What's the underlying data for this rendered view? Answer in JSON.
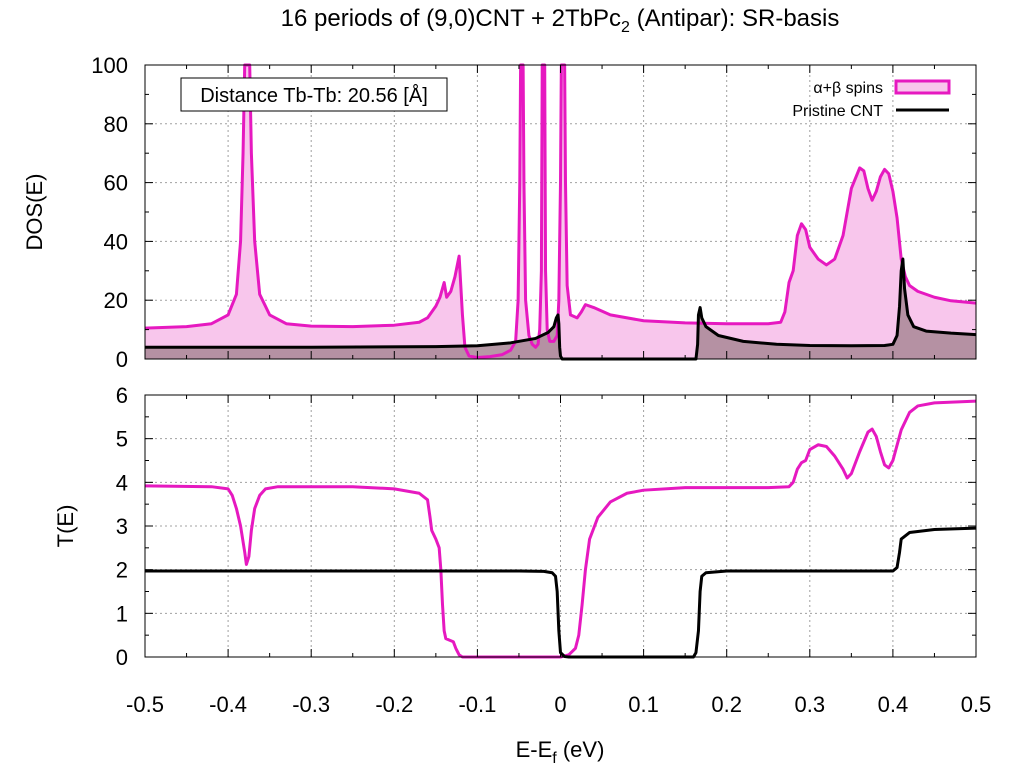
{
  "title": {
    "pre": "16 periods of (9,0)CNT + 2TbPc",
    "sub": "2",
    "post": " (Antipar): SR-basis"
  },
  "annotation": "Distance Tb-Tb: 20.56 [Å]",
  "xlabel": {
    "pre": "E-E",
    "sub": "f",
    "post": " (eV)"
  },
  "legend": [
    {
      "label": "α+β spins",
      "color": "#e619c0",
      "fill": "#f8c6ec"
    },
    {
      "label": "Pristine CNT",
      "color": "#000000",
      "fill": "#a98797"
    }
  ],
  "chart_data": [
    {
      "type": "area",
      "panel": "top",
      "ylabel": "DOS(E)",
      "xlim": [
        -0.5,
        0.5
      ],
      "ylim": [
        0,
        100
      ],
      "x_ticks": [
        -0.5,
        -0.4,
        -0.3,
        -0.2,
        -0.1,
        0,
        0.1,
        0.2,
        0.3,
        0.4,
        0.5
      ],
      "y_ticks": [
        0,
        20,
        40,
        60,
        80,
        100
      ],
      "y_tick_labels": [
        "0",
        "20",
        "40",
        "60",
        "80",
        "100"
      ],
      "grid": true,
      "legend_position": "top-right",
      "series": [
        {
          "name": "α+β spins",
          "color": "#e619c0",
          "fill": "#f8c6ec",
          "points": [
            [
              -0.5,
              10.5
            ],
            [
              -0.45,
              11
            ],
            [
              -0.42,
              12
            ],
            [
              -0.4,
              15
            ],
            [
              -0.39,
              22
            ],
            [
              -0.385,
              40
            ],
            [
              -0.382,
              70
            ],
            [
              -0.38,
              100
            ],
            [
              -0.374,
              100
            ],
            [
              -0.372,
              70
            ],
            [
              -0.368,
              40
            ],
            [
              -0.362,
              22
            ],
            [
              -0.35,
              15
            ],
            [
              -0.33,
              12
            ],
            [
              -0.3,
              11.2
            ],
            [
              -0.25,
              11
            ],
            [
              -0.2,
              11.5
            ],
            [
              -0.17,
              12.5
            ],
            [
              -0.16,
              14
            ],
            [
              -0.15,
              18
            ],
            [
              -0.145,
              21
            ],
            [
              -0.14,
              26
            ],
            [
              -0.137,
              21
            ],
            [
              -0.132,
              23
            ],
            [
              -0.127,
              28
            ],
            [
              -0.122,
              35
            ],
            [
              -0.12,
              25
            ],
            [
              -0.118,
              15
            ],
            [
              -0.115,
              4
            ],
            [
              -0.11,
              1
            ],
            [
              -0.1,
              0.5
            ],
            [
              -0.085,
              0.8
            ],
            [
              -0.07,
              1.5
            ],
            [
              -0.06,
              3
            ],
            [
              -0.054,
              6
            ],
            [
              -0.051,
              20
            ],
            [
              -0.049,
              60
            ],
            [
              -0.048,
              100
            ],
            [
              -0.045,
              100
            ],
            [
              -0.044,
              60
            ],
            [
              -0.042,
              20
            ],
            [
              -0.038,
              8
            ],
            [
              -0.034,
              5
            ],
            [
              -0.03,
              4
            ],
            [
              -0.027,
              5
            ],
            [
              -0.025,
              10
            ],
            [
              -0.023,
              30
            ],
            [
              -0.022,
              100
            ],
            [
              -0.019,
              100
            ],
            [
              -0.018,
              30
            ],
            [
              -0.016,
              10
            ],
            [
              -0.013,
              6
            ],
            [
              -0.008,
              6
            ],
            [
              -0.004,
              8
            ],
            [
              -0.002,
              20
            ],
            [
              0.0,
              60
            ],
            [
              0.001,
              100
            ],
            [
              0.005,
              100
            ],
            [
              0.006,
              60
            ],
            [
              0.008,
              25
            ],
            [
              0.012,
              15
            ],
            [
              0.02,
              14
            ],
            [
              0.025,
              16
            ],
            [
              0.03,
              18.5
            ],
            [
              0.04,
              17.5
            ],
            [
              0.06,
              15
            ],
            [
              0.1,
              13
            ],
            [
              0.15,
              12.3
            ],
            [
              0.2,
              12
            ],
            [
              0.25,
              12
            ],
            [
              0.265,
              12.5
            ],
            [
              0.27,
              16
            ],
            [
              0.275,
              26
            ],
            [
              0.28,
              30
            ],
            [
              0.285,
              42
            ],
            [
              0.29,
              46
            ],
            [
              0.295,
              44
            ],
            [
              0.3,
              38
            ],
            [
              0.31,
              34
            ],
            [
              0.32,
              32
            ],
            [
              0.33,
              34
            ],
            [
              0.34,
              42
            ],
            [
              0.35,
              58
            ],
            [
              0.36,
              65
            ],
            [
              0.365,
              64
            ],
            [
              0.37,
              58
            ],
            [
              0.375,
              54
            ],
            [
              0.38,
              57
            ],
            [
              0.385,
              62
            ],
            [
              0.39,
              64.5
            ],
            [
              0.395,
              63
            ],
            [
              0.4,
              57
            ],
            [
              0.405,
              48
            ],
            [
              0.41,
              34
            ],
            [
              0.415,
              28
            ],
            [
              0.42,
              25
            ],
            [
              0.43,
              23
            ],
            [
              0.45,
              21
            ],
            [
              0.47,
              19.8
            ],
            [
              0.5,
              19
            ]
          ]
        },
        {
          "name": "Pristine CNT",
          "color": "#000000",
          "fill": "#a98797",
          "points": [
            [
              -0.5,
              4
            ],
            [
              -0.3,
              4
            ],
            [
              -0.15,
              4.2
            ],
            [
              -0.1,
              4.5
            ],
            [
              -0.06,
              5.5
            ],
            [
              -0.03,
              7
            ],
            [
              -0.015,
              9
            ],
            [
              -0.008,
              11
            ],
            [
              -0.005,
              14
            ],
            [
              -0.003,
              15
            ],
            [
              -0.002,
              12
            ],
            [
              -0.001,
              4
            ],
            [
              0.0,
              1
            ],
            [
              0.002,
              0
            ],
            [
              0.163,
              0
            ],
            [
              0.165,
              5
            ],
            [
              0.166,
              15
            ],
            [
              0.168,
              17.5
            ],
            [
              0.17,
              14
            ],
            [
              0.175,
              11
            ],
            [
              0.19,
              8
            ],
            [
              0.22,
              6
            ],
            [
              0.26,
              5
            ],
            [
              0.3,
              4.6
            ],
            [
              0.35,
              4.5
            ],
            [
              0.39,
              4.6
            ],
            [
              0.4,
              5
            ],
            [
              0.405,
              8
            ],
            [
              0.408,
              18
            ],
            [
              0.41,
              30
            ],
            [
              0.412,
              34
            ],
            [
              0.414,
              24
            ],
            [
              0.418,
              15
            ],
            [
              0.425,
              11
            ],
            [
              0.44,
              9.5
            ],
            [
              0.47,
              8.8
            ],
            [
              0.5,
              8.3
            ]
          ]
        }
      ]
    },
    {
      "type": "line",
      "panel": "bottom",
      "ylabel": "T(E)",
      "xlim": [
        -0.5,
        0.5
      ],
      "ylim": [
        0,
        6
      ],
      "x_ticks": [
        -0.5,
        -0.4,
        -0.3,
        -0.2,
        -0.1,
        0,
        0.1,
        0.2,
        0.3,
        0.4,
        0.5
      ],
      "x_tick_labels": [
        "-0.5",
        "-0.4",
        "-0.3",
        "-0.2",
        "-0.1",
        "0",
        "0.1",
        "0.2",
        "0.3",
        "0.4",
        "0.5"
      ],
      "y_ticks": [
        0,
        1,
        2,
        3,
        4,
        5,
        6
      ],
      "y_tick_labels": [
        "0",
        "1",
        "2",
        "3",
        "4",
        "5",
        "6"
      ],
      "grid": true,
      "series": [
        {
          "name": "α+β spins",
          "color": "#e619c0",
          "points": [
            [
              -0.5,
              3.92
            ],
            [
              -0.42,
              3.9
            ],
            [
              -0.4,
              3.85
            ],
            [
              -0.395,
              3.7
            ],
            [
              -0.39,
              3.4
            ],
            [
              -0.385,
              3.0
            ],
            [
              -0.38,
              2.4
            ],
            [
              -0.378,
              2.12
            ],
            [
              -0.375,
              2.3
            ],
            [
              -0.372,
              2.9
            ],
            [
              -0.368,
              3.4
            ],
            [
              -0.362,
              3.7
            ],
            [
              -0.355,
              3.85
            ],
            [
              -0.34,
              3.9
            ],
            [
              -0.25,
              3.9
            ],
            [
              -0.2,
              3.85
            ],
            [
              -0.17,
              3.75
            ],
            [
              -0.16,
              3.6
            ],
            [
              -0.157,
              3.2
            ],
            [
              -0.155,
              2.9
            ],
            [
              -0.15,
              2.7
            ],
            [
              -0.146,
              2.5
            ],
            [
              -0.144,
              2.0
            ],
            [
              -0.142,
              1.2
            ],
            [
              -0.14,
              0.6
            ],
            [
              -0.138,
              0.42
            ],
            [
              -0.133,
              0.38
            ],
            [
              -0.129,
              0.35
            ],
            [
              -0.126,
              0.2
            ],
            [
              -0.122,
              0.05
            ],
            [
              -0.118,
              0.0
            ],
            [
              -0.05,
              0.0
            ],
            [
              -0.02,
              0.0
            ],
            [
              0.0,
              0.0
            ],
            [
              0.01,
              0.05
            ],
            [
              0.018,
              0.2
            ],
            [
              0.022,
              0.5
            ],
            [
              0.026,
              1.2
            ],
            [
              0.03,
              2.0
            ],
            [
              0.035,
              2.7
            ],
            [
              0.045,
              3.2
            ],
            [
              0.06,
              3.55
            ],
            [
              0.08,
              3.75
            ],
            [
              0.1,
              3.82
            ],
            [
              0.15,
              3.88
            ],
            [
              0.25,
              3.88
            ],
            [
              0.275,
              3.9
            ],
            [
              0.28,
              4.0
            ],
            [
              0.285,
              4.3
            ],
            [
              0.29,
              4.45
            ],
            [
              0.295,
              4.5
            ],
            [
              0.3,
              4.75
            ],
            [
              0.31,
              4.86
            ],
            [
              0.32,
              4.82
            ],
            [
              0.33,
              4.6
            ],
            [
              0.34,
              4.3
            ],
            [
              0.345,
              4.1
            ],
            [
              0.35,
              4.2
            ],
            [
              0.36,
              4.7
            ],
            [
              0.37,
              5.15
            ],
            [
              0.375,
              5.22
            ],
            [
              0.38,
              5.05
            ],
            [
              0.385,
              4.7
            ],
            [
              0.39,
              4.4
            ],
            [
              0.395,
              4.33
            ],
            [
              0.4,
              4.5
            ],
            [
              0.41,
              5.2
            ],
            [
              0.42,
              5.6
            ],
            [
              0.43,
              5.75
            ],
            [
              0.45,
              5.82
            ],
            [
              0.5,
              5.86
            ]
          ]
        },
        {
          "name": "Pristine CNT",
          "color": "#000000",
          "points": [
            [
              -0.5,
              1.97
            ],
            [
              -0.2,
              1.97
            ],
            [
              -0.05,
              1.97
            ],
            [
              -0.02,
              1.96
            ],
            [
              -0.01,
              1.93
            ],
            [
              -0.006,
              1.85
            ],
            [
              -0.004,
              1.5
            ],
            [
              -0.002,
              0.6
            ],
            [
              0.0,
              0.1
            ],
            [
              0.005,
              0.01
            ],
            [
              0.01,
              0.0
            ],
            [
              0.16,
              0.0
            ],
            [
              0.163,
              0.1
            ],
            [
              0.166,
              0.6
            ],
            [
              0.168,
              1.5
            ],
            [
              0.17,
              1.85
            ],
            [
              0.175,
              1.93
            ],
            [
              0.2,
              1.97
            ],
            [
              0.4,
              1.97
            ],
            [
              0.405,
              2.05
            ],
            [
              0.408,
              2.4
            ],
            [
              0.41,
              2.7
            ],
            [
              0.42,
              2.85
            ],
            [
              0.45,
              2.92
            ],
            [
              0.5,
              2.95
            ]
          ]
        }
      ]
    }
  ]
}
